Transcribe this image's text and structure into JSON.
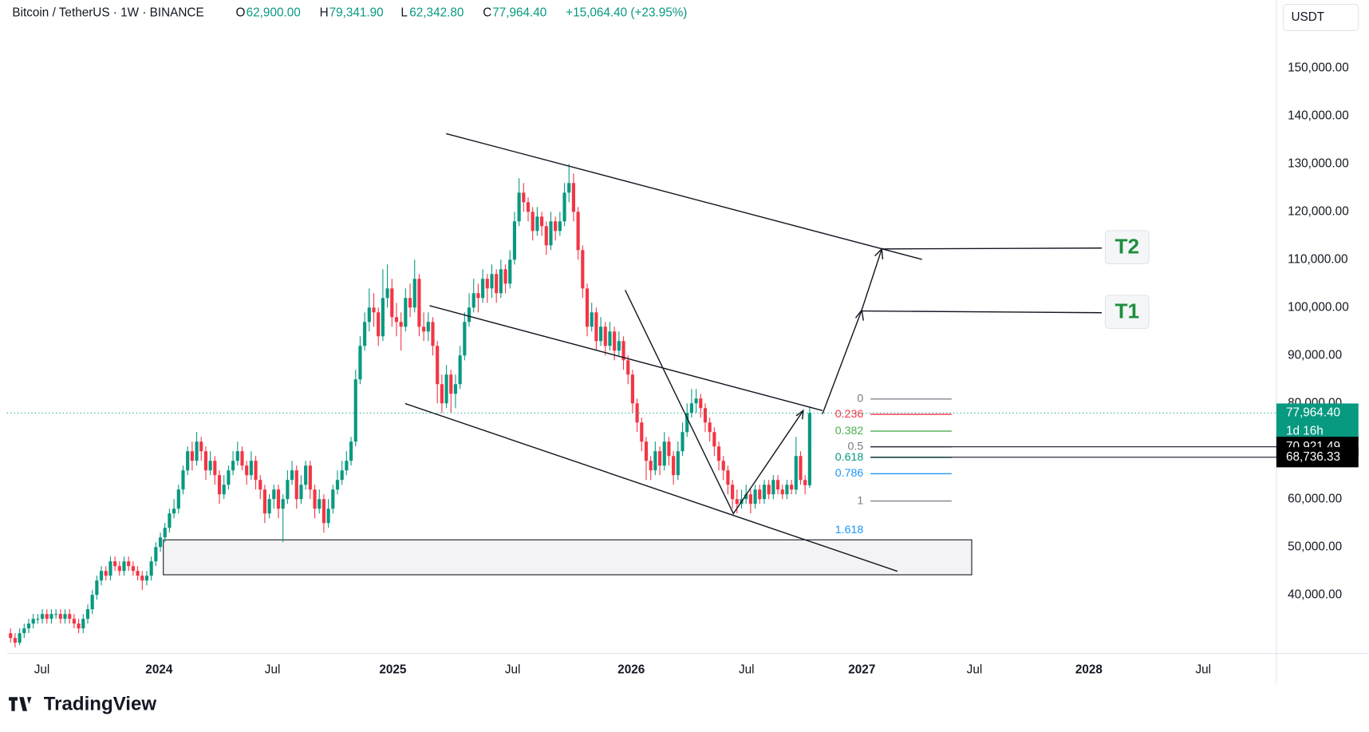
{
  "header": {
    "symbol": "Bitcoin / TetherUS · 1W · BINANCE",
    "ohlc": [
      {
        "key": "O",
        "value": "62,900.00"
      },
      {
        "key": "H",
        "value": "79,341.90"
      },
      {
        "key": "L",
        "value": "62,342.80"
      },
      {
        "key": "C",
        "value": "77,964.40"
      }
    ],
    "change": "+15,064.40 (+23.95%)"
  },
  "chart_data": {
    "type": "candlestick",
    "currency": "USDT",
    "up_color": "#089981",
    "down_color": "#f23645",
    "values": [
      [
        32000,
        33000,
        30000,
        31000
      ],
      [
        31000,
        32000,
        29000,
        30000
      ],
      [
        30000,
        33000,
        29500,
        32000
      ],
      [
        32000,
        34000,
        31000,
        33000
      ],
      [
        33000,
        35000,
        32000,
        34000
      ],
      [
        34000,
        36000,
        33000,
        35000
      ],
      [
        35000,
        36000,
        34000,
        35000
      ],
      [
        35000,
        37000,
        34000,
        36000
      ],
      [
        36000,
        37000,
        34000,
        35000
      ],
      [
        35000,
        37000,
        34000,
        36000
      ],
      [
        36000,
        37000,
        35000,
        36000
      ],
      [
        36000,
        37000,
        34000,
        35000
      ],
      [
        35000,
        37000,
        34000,
        36000
      ],
      [
        36000,
        37000,
        34000,
        35000
      ],
      [
        35000,
        36000,
        33000,
        34000
      ],
      [
        34000,
        35000,
        32000,
        33000
      ],
      [
        33000,
        36000,
        32000,
        35000
      ],
      [
        35000,
        38000,
        34000,
        37000
      ],
      [
        37000,
        41000,
        36000,
        40000
      ],
      [
        40000,
        44000,
        39000,
        43000
      ],
      [
        43000,
        46000,
        42000,
        45000
      ],
      [
        45000,
        46000,
        43000,
        44000
      ],
      [
        44000,
        48000,
        43000,
        47000
      ],
      [
        47000,
        48000,
        45000,
        46000
      ],
      [
        46000,
        47000,
        44000,
        45000
      ],
      [
        45000,
        48000,
        44000,
        47000
      ],
      [
        47000,
        48000,
        45000,
        46000
      ],
      [
        46000,
        47000,
        44000,
        45000
      ],
      [
        45000,
        46000,
        43000,
        44000
      ],
      [
        44000,
        45000,
        41000,
        43000
      ],
      [
        43000,
        45000,
        42000,
        44000
      ],
      [
        44000,
        48000,
        43000,
        47000
      ],
      [
        47000,
        51000,
        46000,
        50000
      ],
      [
        50000,
        53000,
        49000,
        52000
      ],
      [
        52000,
        55000,
        51000,
        54000
      ],
      [
        54000,
        58000,
        53000,
        57000
      ],
      [
        57000,
        60000,
        56000,
        58000
      ],
      [
        58000,
        63000,
        57000,
        62000
      ],
      [
        62000,
        67000,
        61000,
        66000
      ],
      [
        66000,
        71000,
        65000,
        70000
      ],
      [
        70000,
        72000,
        66000,
        68000
      ],
      [
        68000,
        74000,
        67000,
        72000
      ],
      [
        72000,
        73000,
        68000,
        70000
      ],
      [
        70000,
        71000,
        64000,
        66000
      ],
      [
        66000,
        70000,
        65000,
        68000
      ],
      [
        68000,
        69000,
        63000,
        65000
      ],
      [
        65000,
        66000,
        59000,
        61000
      ],
      [
        61000,
        65000,
        60000,
        63000
      ],
      [
        63000,
        67000,
        62000,
        66000
      ],
      [
        66000,
        70000,
        65000,
        68000
      ],
      [
        68000,
        72000,
        67000,
        70000
      ],
      [
        70000,
        71000,
        66000,
        67000
      ],
      [
        67000,
        68000,
        63000,
        65000
      ],
      [
        65000,
        70000,
        64000,
        68000
      ],
      [
        68000,
        69000,
        62000,
        64000
      ],
      [
        64000,
        65000,
        60000,
        62000
      ],
      [
        62000,
        63000,
        55000,
        57000
      ],
      [
        57000,
        61000,
        56000,
        60000
      ],
      [
        60000,
        63000,
        58000,
        62000
      ],
      [
        62000,
        63000,
        56000,
        58000
      ],
      [
        58000,
        61000,
        51000,
        60000
      ],
      [
        60000,
        66000,
        59000,
        64000
      ],
      [
        64000,
        68000,
        63000,
        66000
      ],
      [
        66000,
        67000,
        58000,
        60000
      ],
      [
        60000,
        65000,
        59000,
        63000
      ],
      [
        63000,
        68000,
        62000,
        67000
      ],
      [
        67000,
        68000,
        60000,
        62000
      ],
      [
        62000,
        63000,
        56000,
        58000
      ],
      [
        58000,
        62000,
        57000,
        60000
      ],
      [
        60000,
        61000,
        53000,
        55000
      ],
      [
        55000,
        60000,
        54000,
        58000
      ],
      [
        58000,
        63000,
        57000,
        62000
      ],
      [
        62000,
        66000,
        61000,
        64000
      ],
      [
        64000,
        68000,
        63000,
        66000
      ],
      [
        66000,
        70000,
        65000,
        68000
      ],
      [
        68000,
        73000,
        67000,
        72000
      ],
      [
        72000,
        87000,
        71000,
        85000
      ],
      [
        85000,
        94000,
        84000,
        92000
      ],
      [
        92000,
        99000,
        91000,
        97000
      ],
      [
        97000,
        104000,
        95000,
        100000
      ],
      [
        100000,
        103000,
        96000,
        99000
      ],
      [
        99000,
        100000,
        92000,
        94000
      ],
      [
        94000,
        108000,
        93000,
        102000
      ],
      [
        102000,
        109000,
        100000,
        104000
      ],
      [
        104000,
        106000,
        96000,
        98000
      ],
      [
        98000,
        101000,
        94000,
        97000
      ],
      [
        97000,
        99000,
        91000,
        96000
      ],
      [
        96000,
        104000,
        95000,
        102000
      ],
      [
        102000,
        105000,
        98000,
        100000
      ],
      [
        100000,
        110000,
        99000,
        106000
      ],
      [
        106000,
        107000,
        94000,
        96000
      ],
      [
        96000,
        99000,
        93000,
        95000
      ],
      [
        95000,
        99000,
        93000,
        97000
      ],
      [
        97000,
        98000,
        90000,
        92000
      ],
      [
        92000,
        93000,
        80000,
        84000
      ],
      [
        84000,
        86000,
        78000,
        80000
      ],
      [
        80000,
        88000,
        79000,
        86000
      ],
      [
        86000,
        87000,
        78000,
        82000
      ],
      [
        82000,
        86000,
        79000,
        84000
      ],
      [
        84000,
        92000,
        83000,
        90000
      ],
      [
        90000,
        99000,
        89000,
        97000
      ],
      [
        97000,
        103000,
        96000,
        100000
      ],
      [
        100000,
        106000,
        99000,
        103000
      ],
      [
        103000,
        105000,
        99000,
        102000
      ],
      [
        102000,
        108000,
        101000,
        106000
      ],
      [
        106000,
        107000,
        101000,
        104000
      ],
      [
        104000,
        109000,
        102000,
        107000
      ],
      [
        107000,
        108000,
        101000,
        103000
      ],
      [
        103000,
        110000,
        102000,
        108000
      ],
      [
        108000,
        109000,
        103000,
        105000
      ],
      [
        105000,
        112000,
        104000,
        110000
      ],
      [
        110000,
        120000,
        109000,
        118000
      ],
      [
        118000,
        127000,
        117000,
        124000
      ],
      [
        124000,
        126000,
        120000,
        122000
      ],
      [
        122000,
        123000,
        118000,
        120000
      ],
      [
        120000,
        121000,
        114000,
        116000
      ],
      [
        116000,
        121000,
        115000,
        119000
      ],
      [
        119000,
        120000,
        115000,
        117000
      ],
      [
        117000,
        118000,
        111000,
        113000
      ],
      [
        113000,
        120000,
        112000,
        118000
      ],
      [
        118000,
        119000,
        114000,
        116000
      ],
      [
        116000,
        120000,
        115000,
        118000
      ],
      [
        118000,
        126000,
        117000,
        124000
      ],
      [
        124000,
        130000,
        122000,
        126000
      ],
      [
        126000,
        128000,
        118000,
        120000
      ],
      [
        120000,
        121000,
        110000,
        112000
      ],
      [
        112000,
        113000,
        102000,
        104000
      ],
      [
        104000,
        105000,
        94000,
        96000
      ],
      [
        96000,
        101000,
        95000,
        99000
      ],
      [
        99000,
        100000,
        91000,
        93000
      ],
      [
        93000,
        98000,
        92000,
        96000
      ],
      [
        96000,
        97000,
        90000,
        92000
      ],
      [
        92000,
        97000,
        91000,
        95000
      ],
      [
        95000,
        96000,
        89000,
        91000
      ],
      [
        91000,
        95000,
        90000,
        93000
      ],
      [
        93000,
        94000,
        87000,
        89000
      ],
      [
        89000,
        90000,
        84000,
        86000
      ],
      [
        86000,
        87000,
        78000,
        80000
      ],
      [
        80000,
        81000,
        74000,
        76000
      ],
      [
        76000,
        77000,
        70000,
        72000
      ],
      [
        72000,
        73000,
        64000,
        68000
      ],
      [
        68000,
        69000,
        64000,
        66000
      ],
      [
        66000,
        72000,
        65000,
        70000
      ],
      [
        70000,
        71000,
        65000,
        67000
      ],
      [
        67000,
        74000,
        66000,
        72000
      ],
      [
        72000,
        73000,
        67000,
        69000
      ],
      [
        69000,
        70000,
        63000,
        65000
      ],
      [
        65000,
        72000,
        64000,
        70000
      ],
      [
        70000,
        76000,
        69000,
        74000
      ],
      [
        74000,
        80000,
        73000,
        78000
      ],
      [
        78000,
        83000,
        77000,
        80000
      ],
      [
        80000,
        83000,
        78000,
        81000
      ],
      [
        81000,
        82000,
        77000,
        79000
      ],
      [
        79000,
        80000,
        74000,
        76000
      ],
      [
        76000,
        77000,
        72000,
        74000
      ],
      [
        74000,
        75000,
        69000,
        71000
      ],
      [
        71000,
        72000,
        66000,
        68000
      ],
      [
        68000,
        69000,
        64000,
        66000
      ],
      [
        66000,
        67000,
        61000,
        63000
      ],
      [
        63000,
        64000,
        58000,
        60000
      ],
      [
        60000,
        62000,
        57000,
        59000
      ],
      [
        59000,
        62000,
        58000,
        60000
      ],
      [
        60000,
        63000,
        59000,
        61000
      ],
      [
        61000,
        62000,
        57000,
        59000
      ],
      [
        59000,
        63000,
        58000,
        62000
      ],
      [
        62000,
        63000,
        59000,
        60000
      ],
      [
        60000,
        64000,
        59000,
        63000
      ],
      [
        63000,
        64000,
        60000,
        61000
      ],
      [
        61000,
        65000,
        60000,
        64000
      ],
      [
        64000,
        65000,
        61000,
        62000
      ],
      [
        62000,
        63000,
        60000,
        61000
      ],
      [
        61000,
        64000,
        60000,
        63000
      ],
      [
        63000,
        64000,
        61000,
        62000
      ],
      [
        62000,
        73000,
        61000,
        69000
      ],
      [
        69000,
        70000,
        63000,
        64000
      ],
      [
        64000,
        65000,
        61000,
        62900
      ],
      [
        62900,
        79341.9,
        62342.8,
        77964.4
      ]
    ],
    "xlim": [
      -0.77,
      278.8
    ],
    "ylim": [
      27780,
      164230
    ],
    "xticks": [
      {
        "value": 6.9,
        "label": "Jul"
      },
      {
        "value": 32.7,
        "label": "2024"
      },
      {
        "value": 57.7,
        "label": "Jul"
      },
      {
        "value": 84.2,
        "label": "2025"
      },
      {
        "value": 110.6,
        "label": "Jul"
      },
      {
        "value": 136.7,
        "label": "2026"
      },
      {
        "value": 162.1,
        "label": "Jul"
      },
      {
        "value": 187.5,
        "label": "2027"
      },
      {
        "value": 212.3,
        "label": "Jul"
      },
      {
        "value": 237.5,
        "label": "2028"
      },
      {
        "value": 262.7,
        "label": "Jul"
      }
    ],
    "yticks": [
      {
        "value": 40000,
        "label": "40,000.00"
      },
      {
        "value": 50000,
        "label": "50,000.00"
      },
      {
        "value": 60000,
        "label": "60,000.00"
      },
      {
        "value": 70000,
        "label": "70,000.00"
      },
      {
        "value": 80000,
        "label": "80,000.00"
      },
      {
        "value": 90000,
        "label": "90,000.00"
      },
      {
        "value": 100000,
        "label": "100,000.00"
      },
      {
        "value": 110000,
        "label": "110,000.00"
      },
      {
        "value": 120000,
        "label": "120,000.00"
      },
      {
        "value": 130000,
        "label": "130,000.00"
      },
      {
        "value": 140000,
        "label": "140,000.00"
      },
      {
        "value": 150000,
        "label": "150,000.00"
      }
    ],
    "price_tags": [
      {
        "value": 77964.4,
        "label": "77,964.40",
        "countdown": "1d 16h",
        "color": "#089981"
      },
      {
        "value": 70921.49,
        "label": "70,921.49",
        "color": "#000000"
      },
      {
        "value": 68736.33,
        "label": "68,736.33",
        "color": "#000000"
      }
    ],
    "fib": [
      {
        "value": 0,
        "price": 80900,
        "color": "#787b86"
      },
      {
        "value": 0.236,
        "price": 77700,
        "color": "#f23645"
      },
      {
        "value": 0.382,
        "price": 74200,
        "color": "#4caf50"
      },
      {
        "value": 0.5,
        "price": 70900,
        "color": "#787b86"
      },
      {
        "value": 0.618,
        "price": 68700,
        "color": "#089981"
      },
      {
        "value": 0.786,
        "price": 65300,
        "color": "#2196f3"
      },
      {
        "value": 1,
        "price": 59600,
        "color": "#787b86"
      },
      {
        "value": 1.618,
        "price": 53500,
        "color": "#2196f3",
        "line": false
      }
    ],
    "targets": [
      "T2",
      "T1"
    ]
  },
  "brand": "TradingView"
}
